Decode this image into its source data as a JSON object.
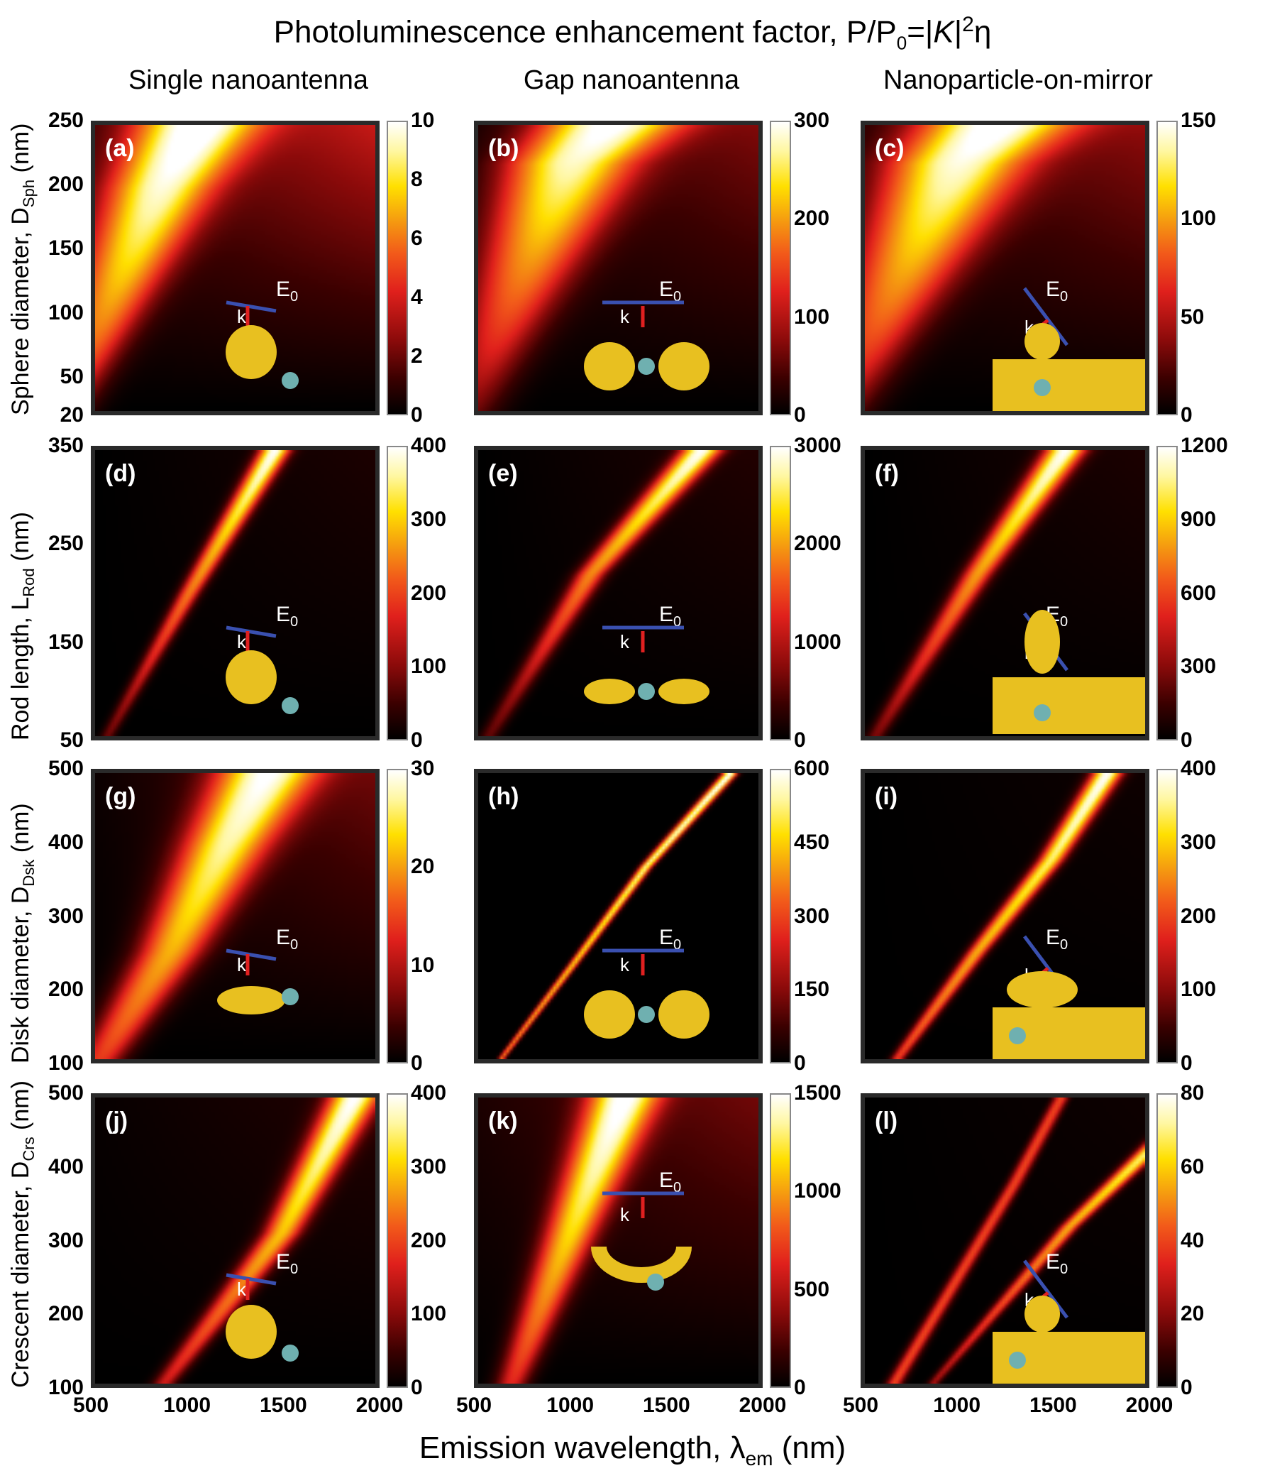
{
  "figure": {
    "title_main": "Photoluminescence enhancement factor, P/P",
    "title_sub0": "0",
    "title_eq": "=|",
    "title_K": "K",
    "title_abs": "|",
    "title_sup": "2",
    "title_eta": "η",
    "column_titles": [
      "Single nanoantenna",
      "Gap nanoantenna",
      "Nanoparticle-on-mirror"
    ],
    "xlabel_main": "Emission wavelength, λ",
    "xlabel_sub": "em",
    "xlabel_unit": " (nm)",
    "inset_field_label": "E",
    "inset_field_sub": "0",
    "inset_k_label": "k"
  },
  "rows": [
    {
      "ylabel_main": "Sphere diameter, D",
      "ylabel_sub": "Sph",
      "ylabel_unit": " (nm)",
      "yticks": [
        "250",
        "200",
        "150",
        "100",
        "50",
        "20"
      ]
    },
    {
      "ylabel_main": "Rod length, L",
      "ylabel_sub": "Rod",
      "ylabel_unit": " (nm)",
      "yticks": [
        "350",
        "250",
        "150",
        "50"
      ]
    },
    {
      "ylabel_main": "Disk diameter, D",
      "ylabel_sub": "Dsk",
      "ylabel_unit": " (nm)",
      "yticks": [
        "500",
        "400",
        "300",
        "200",
        "100"
      ]
    },
    {
      "ylabel_main": "Crescent diameter, D",
      "ylabel_sub": "Crs",
      "ylabel_unit": " (nm)",
      "yticks": [
        "500",
        "400",
        "300",
        "200",
        "100"
      ]
    }
  ],
  "xticks": [
    "500",
    "1000",
    "1500",
    "2000"
  ],
  "panels": [
    {
      "label": "(a)",
      "cbar": [
        "10",
        "8",
        "6",
        "4",
        "2",
        "0"
      ]
    },
    {
      "label": "(b)",
      "cbar": [
        "300",
        "200",
        "100",
        "0"
      ]
    },
    {
      "label": "(c)",
      "cbar": [
        "150",
        "100",
        "50",
        "0"
      ]
    },
    {
      "label": "(d)",
      "cbar": [
        "400",
        "300",
        "200",
        "100",
        "0"
      ]
    },
    {
      "label": "(e)",
      "cbar": [
        "3000",
        "2000",
        "1000",
        "0"
      ]
    },
    {
      "label": "(f)",
      "cbar": [
        "1200",
        "900",
        "600",
        "300",
        "0"
      ]
    },
    {
      "label": "(g)",
      "cbar": [
        "30",
        "20",
        "10",
        "0"
      ]
    },
    {
      "label": "(h)",
      "cbar": [
        "600",
        "450",
        "300",
        "150",
        "0"
      ]
    },
    {
      "label": "(i)",
      "cbar": [
        "400",
        "300",
        "200",
        "100",
        "0"
      ]
    },
    {
      "label": "(j)",
      "cbar": [
        "400",
        "300",
        "200",
        "100",
        "0"
      ]
    },
    {
      "label": "(k)",
      "cbar": [
        "1500",
        "1000",
        "500",
        "0"
      ]
    },
    {
      "label": "(l)",
      "cbar": [
        "80",
        "60",
        "40",
        "20",
        "0"
      ]
    }
  ],
  "colors": {
    "cmap": [
      "#000000",
      "#3a0000",
      "#8a0a0a",
      "#e0201c",
      "#f25a1a",
      "#f59a10",
      "#ffe000",
      "#fff7a0",
      "#ffffff"
    ],
    "gold": "#e8c020",
    "field_arrow": "#3a50b0",
    "k_arrow": "#e02020",
    "emitter": "#6fb0b0"
  },
  "chart_data": [
    {
      "type": "heatmap",
      "panel": "(a)",
      "title": "Single nanoantenna — sphere",
      "xlabel": "Emission wavelength, λem (nm)",
      "ylabel": "Sphere diameter, DSph (nm)",
      "xlim": [
        500,
        2000
      ],
      "ylim": [
        20,
        250
      ],
      "clim": [
        0,
        10
      ],
      "colorbar_ticks": [
        0,
        2,
        4,
        6,
        8,
        10
      ],
      "peak_ridge": [
        [
          700,
          150
        ],
        [
          850,
          200
        ],
        [
          1050,
          250
        ]
      ],
      "max_approx": 10
    },
    {
      "type": "heatmap",
      "panel": "(b)",
      "title": "Gap nanoantenna — sphere dimer",
      "xlabel": "Emission wavelength, λem (nm)",
      "ylabel": "Sphere diameter, DSph (nm)",
      "xlim": [
        500,
        2000
      ],
      "ylim": [
        20,
        250
      ],
      "clim": [
        0,
        300
      ],
      "colorbar_ticks": [
        0,
        100,
        200,
        300
      ],
      "peak_ridge": [
        [
          800,
          150
        ],
        [
          1000,
          220
        ],
        [
          1200,
          250
        ]
      ],
      "max_approx": 300
    },
    {
      "type": "heatmap",
      "panel": "(c)",
      "title": "Nanoparticle-on-mirror — sphere",
      "xlabel": "Emission wavelength, λem (nm)",
      "ylabel": "Sphere diameter, DSph (nm)",
      "xlim": [
        500,
        2000
      ],
      "ylim": [
        20,
        250
      ],
      "clim": [
        0,
        150
      ],
      "colorbar_ticks": [
        0,
        50,
        100,
        150
      ],
      "peak_ridge": [
        [
          800,
          160
        ],
        [
          1000,
          220
        ],
        [
          1200,
          250
        ]
      ],
      "max_approx": 150
    },
    {
      "type": "heatmap",
      "panel": "(d)",
      "title": "Single nanoantenna — rod",
      "xlabel": "Emission wavelength, λem (nm)",
      "ylabel": "Rod length, LRod (nm)",
      "xlim": [
        500,
        2000
      ],
      "ylim": [
        50,
        350
      ],
      "clim": [
        0,
        400
      ],
      "colorbar_ticks": [
        0,
        100,
        200,
        300,
        400
      ],
      "peak_ridge": [
        [
          650,
          80
        ],
        [
          1000,
          200
        ],
        [
          1400,
          330
        ]
      ],
      "max_approx": 400
    },
    {
      "type": "heatmap",
      "panel": "(e)",
      "title": "Gap nanoantenna — rod dimer",
      "xlabel": "Emission wavelength, λem (nm)",
      "ylabel": "Rod length, LRod (nm)",
      "xlim": [
        500,
        2000
      ],
      "ylim": [
        50,
        350
      ],
      "clim": [
        0,
        3000
      ],
      "colorbar_ticks": [
        0,
        1000,
        2000,
        3000
      ],
      "peak_ridge": [
        [
          650,
          80
        ],
        [
          1100,
          220
        ],
        [
          1650,
          340
        ]
      ],
      "max_approx": 3000
    },
    {
      "type": "heatmap",
      "panel": "(f)",
      "title": "Nanoparticle-on-mirror — rod",
      "xlabel": "Emission wavelength, λem (nm)",
      "ylabel": "Rod length, LRod (nm)",
      "xlim": [
        500,
        2000
      ],
      "ylim": [
        50,
        350
      ],
      "clim": [
        0,
        1200
      ],
      "colorbar_ticks": [
        0,
        300,
        600,
        900,
        1200
      ],
      "peak_ridge": [
        [
          650,
          80
        ],
        [
          1100,
          220
        ],
        [
          1500,
          330
        ]
      ],
      "max_approx": 1200
    },
    {
      "type": "heatmap",
      "panel": "(g)",
      "title": "Single nanoantenna — disk",
      "xlabel": "Emission wavelength, λem (nm)",
      "ylabel": "Disk diameter, DDsk (nm)",
      "xlim": [
        500,
        2000
      ],
      "ylim": [
        100,
        500
      ],
      "clim": [
        0,
        30
      ],
      "colorbar_ticks": [
        0,
        10,
        20,
        30
      ],
      "peak_ridge": [
        [
          650,
          150
        ],
        [
          900,
          250
        ],
        [
          1200,
          400
        ],
        [
          1400,
          490
        ]
      ],
      "max_approx": 30
    },
    {
      "type": "heatmap",
      "panel": "(h)",
      "title": "Gap nanoantenna — disk dimer",
      "xlabel": "Emission wavelength, λem (nm)",
      "ylabel": "Disk diameter, DDsk (nm)",
      "xlim": [
        500,
        2000
      ],
      "ylim": [
        100,
        500
      ],
      "clim": [
        0,
        600
      ],
      "colorbar_ticks": [
        0,
        150,
        300,
        450,
        600
      ],
      "peak_ridge": [
        [
          650,
          110
        ],
        [
          1000,
          230
        ],
        [
          1400,
          370
        ],
        [
          1850,
          500
        ]
      ],
      "max_approx": 600
    },
    {
      "type": "heatmap",
      "panel": "(i)",
      "title": "Nanoparticle-on-mirror — disk",
      "xlabel": "Emission wavelength, λem (nm)",
      "ylabel": "Disk diameter, DDsk (nm)",
      "xlim": [
        500,
        2000
      ],
      "ylim": [
        100,
        500
      ],
      "clim": [
        0,
        400
      ],
      "colorbar_ticks": [
        0,
        100,
        200,
        300,
        400
      ],
      "peak_ridge": [
        [
          700,
          110
        ],
        [
          1100,
          250
        ],
        [
          1500,
          380
        ],
        [
          1800,
          500
        ]
      ],
      "max_approx": 400
    },
    {
      "type": "heatmap",
      "panel": "(j)",
      "title": "Single nanoantenna — crescent",
      "xlabel": "Emission wavelength, λem (nm)",
      "ylabel": "Crescent diameter, DCrs (nm)",
      "xlim": [
        500,
        2000
      ],
      "ylim": [
        100,
        500
      ],
      "clim": [
        0,
        400
      ],
      "colorbar_ticks": [
        0,
        100,
        200,
        300,
        400
      ],
      "peak_ridge": [
        [
          900,
          110
        ],
        [
          1200,
          210
        ],
        [
          1500,
          310
        ],
        [
          1850,
          480
        ]
      ],
      "max_approx": 400
    },
    {
      "type": "heatmap",
      "panel": "(k)",
      "title": "Gap nanoantenna — crescent",
      "xlabel": "Emission wavelength, λem (nm)",
      "ylabel": "Crescent diameter, DCrs (nm)",
      "xlim": [
        500,
        2000
      ],
      "ylim": [
        100,
        500
      ],
      "clim": [
        0,
        1500
      ],
      "colorbar_ticks": [
        0,
        500,
        1000,
        1500
      ],
      "peak_ridge": [
        [
          900,
          250
        ],
        [
          1050,
          350
        ],
        [
          1250,
          480
        ]
      ],
      "max_approx": 1500
    },
    {
      "type": "heatmap",
      "panel": "(l)",
      "title": "Nanoparticle-on-mirror — crescent",
      "xlabel": "Emission wavelength, λem (nm)",
      "ylabel": "Crescent diameter, DCrs (nm)",
      "xlim": [
        500,
        2000
      ],
      "ylim": [
        100,
        500
      ],
      "clim": [
        0,
        80
      ],
      "colorbar_ticks": [
        0,
        20,
        40,
        60,
        80
      ],
      "peak_ridge": [
        [
          900,
          110
        ],
        [
          1200,
          200
        ],
        [
          1600,
          320
        ],
        [
          2000,
          420
        ]
      ],
      "secondary_ridge": [
        [
          1000,
          250
        ],
        [
          1300,
          380
        ],
        [
          1550,
          500
        ]
      ],
      "max_approx": 80
    }
  ]
}
